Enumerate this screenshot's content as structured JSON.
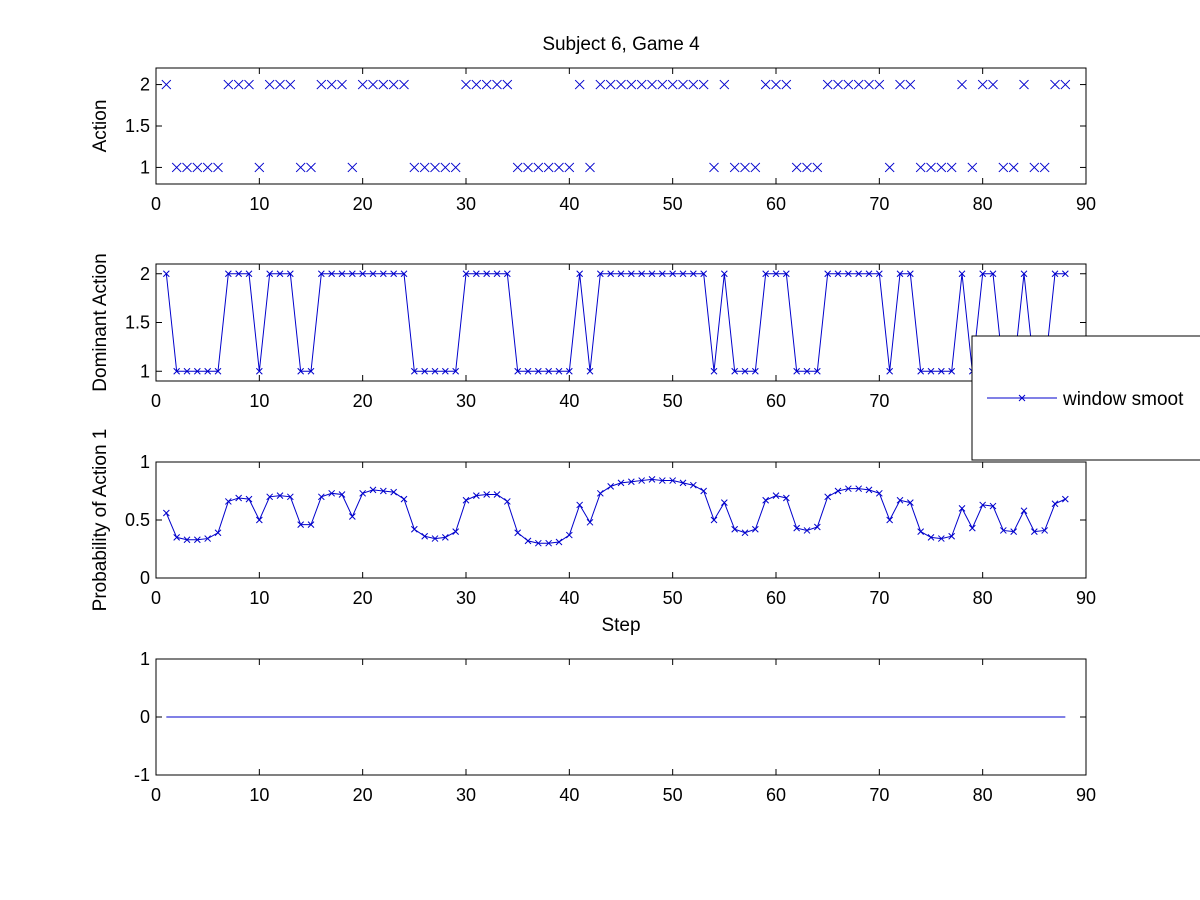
{
  "figure": {
    "title": "Subject 6, Game 4",
    "legend_label": "window smoot",
    "line_color": "#0000cc"
  },
  "chart_data": [
    {
      "type": "scatter",
      "title": "Subject 6, Game 4",
      "xlabel": "",
      "ylabel": "Action",
      "xlim": [
        0,
        90
      ],
      "ylim": [
        0.8,
        2.2
      ],
      "xticks": [
        "0",
        "10",
        "20",
        "30",
        "40",
        "50",
        "60",
        "70",
        "80",
        "90"
      ],
      "yticks": [
        "1",
        "1.5",
        "2"
      ],
      "marker": "x",
      "color": "#0000cc",
      "x": [
        1,
        2,
        3,
        4,
        5,
        6,
        7,
        8,
        9,
        10,
        11,
        12,
        13,
        14,
        15,
        16,
        17,
        18,
        19,
        20,
        21,
        22,
        23,
        24,
        25,
        26,
        27,
        28,
        29,
        30,
        31,
        32,
        33,
        34,
        35,
        36,
        37,
        38,
        39,
        40,
        41,
        42,
        43,
        44,
        45,
        46,
        47,
        48,
        49,
        50,
        51,
        52,
        53,
        54,
        55,
        56,
        57,
        58,
        59,
        60,
        61,
        62,
        63,
        64,
        65,
        66,
        67,
        68,
        69,
        70,
        71,
        72,
        73,
        74,
        75,
        76,
        77,
        78,
        79,
        80,
        81,
        82,
        83,
        84,
        85,
        86,
        87,
        88
      ],
      "y": [
        2,
        1,
        1,
        1,
        1,
        1,
        2,
        2,
        2,
        1,
        2,
        2,
        2,
        1,
        1,
        2,
        2,
        2,
        1,
        2,
        2,
        2,
        2,
        2,
        1,
        1,
        1,
        1,
        1,
        2,
        2,
        2,
        2,
        2,
        1,
        1,
        1,
        1,
        1,
        1,
        2,
        1,
        2,
        2,
        2,
        2,
        2,
        2,
        2,
        2,
        2,
        2,
        2,
        1,
        2,
        1,
        1,
        1,
        2,
        2,
        2,
        1,
        1,
        1,
        2,
        2,
        2,
        2,
        2,
        2,
        1,
        2,
        2,
        1,
        1,
        1,
        1,
        2,
        1,
        2,
        2,
        1,
        1,
        2,
        1,
        1,
        2,
        2
      ]
    },
    {
      "type": "line",
      "xlabel": "",
      "ylabel": "Dominant Action",
      "xlim": [
        0,
        90
      ],
      "ylim": [
        0.9,
        2.1
      ],
      "xticks": [
        "0",
        "10",
        "20",
        "30",
        "40",
        "50",
        "60",
        "70",
        "80",
        "90"
      ],
      "yticks": [
        "1",
        "1.5",
        "2"
      ],
      "marker": "x",
      "color": "#0000cc",
      "series": [
        {
          "name": "window smoot",
          "x": [
            1,
            2,
            3,
            4,
            5,
            6,
            7,
            8,
            9,
            10,
            11,
            12,
            13,
            14,
            15,
            16,
            17,
            18,
            19,
            20,
            21,
            22,
            23,
            24,
            25,
            26,
            27,
            28,
            29,
            30,
            31,
            32,
            33,
            34,
            35,
            36,
            37,
            38,
            39,
            40,
            41,
            42,
            43,
            44,
            45,
            46,
            47,
            48,
            49,
            50,
            51,
            52,
            53,
            54,
            55,
            56,
            57,
            58,
            59,
            60,
            61,
            62,
            63,
            64,
            65,
            66,
            67,
            68,
            69,
            70,
            71,
            72,
            73,
            74,
            75,
            76,
            77,
            78,
            79,
            80,
            81,
            82,
            83,
            84,
            85,
            86,
            87,
            88
          ],
          "values": [
            2,
            1,
            1,
            1,
            1,
            1,
            2,
            2,
            2,
            1,
            2,
            2,
            2,
            1,
            1,
            2,
            2,
            2,
            2,
            2,
            2,
            2,
            2,
            2,
            1,
            1,
            1,
            1,
            1,
            2,
            2,
            2,
            2,
            2,
            1,
            1,
            1,
            1,
            1,
            1,
            2,
            1,
            2,
            2,
            2,
            2,
            2,
            2,
            2,
            2,
            2,
            2,
            2,
            1,
            2,
            1,
            1,
            1,
            2,
            2,
            2,
            1,
            1,
            1,
            2,
            2,
            2,
            2,
            2,
            2,
            1,
            2,
            2,
            1,
            1,
            1,
            1,
            2,
            1,
            2,
            2,
            1,
            1,
            2,
            1,
            1,
            2,
            2
          ]
        }
      ],
      "legend": "right",
      "legend_entries": [
        "window smoot"
      ]
    },
    {
      "type": "line",
      "xlabel": "Step",
      "ylabel": "Probability of Action 1",
      "xlim": [
        0,
        90
      ],
      "ylim": [
        0,
        1
      ],
      "xticks": [
        "0",
        "10",
        "20",
        "30",
        "40",
        "50",
        "60",
        "70",
        "80",
        "90"
      ],
      "yticks": [
        "0",
        "0.5",
        "1"
      ],
      "marker": "x",
      "color": "#0000cc",
      "x": [
        1,
        2,
        3,
        4,
        5,
        6,
        7,
        8,
        9,
        10,
        11,
        12,
        13,
        14,
        15,
        16,
        17,
        18,
        19,
        20,
        21,
        22,
        23,
        24,
        25,
        26,
        27,
        28,
        29,
        30,
        31,
        32,
        33,
        34,
        35,
        36,
        37,
        38,
        39,
        40,
        41,
        42,
        43,
        44,
        45,
        46,
        47,
        48,
        49,
        50,
        51,
        52,
        53,
        54,
        55,
        56,
        57,
        58,
        59,
        60,
        61,
        62,
        63,
        64,
        65,
        66,
        67,
        68,
        69,
        70,
        71,
        72,
        73,
        74,
        75,
        76,
        77,
        78,
        79,
        80,
        81,
        82,
        83,
        84,
        85,
        86,
        87,
        88
      ],
      "values": [
        0.56,
        0.35,
        0.33,
        0.33,
        0.34,
        0.39,
        0.66,
        0.69,
        0.68,
        0.5,
        0.7,
        0.71,
        0.7,
        0.46,
        0.46,
        0.7,
        0.73,
        0.72,
        0.53,
        0.73,
        0.76,
        0.75,
        0.74,
        0.68,
        0.42,
        0.36,
        0.34,
        0.35,
        0.4,
        0.67,
        0.71,
        0.72,
        0.72,
        0.66,
        0.39,
        0.32,
        0.3,
        0.3,
        0.31,
        0.37,
        0.63,
        0.48,
        0.73,
        0.79,
        0.82,
        0.83,
        0.84,
        0.85,
        0.84,
        0.84,
        0.82,
        0.8,
        0.75,
        0.5,
        0.65,
        0.42,
        0.39,
        0.42,
        0.67,
        0.71,
        0.69,
        0.43,
        0.41,
        0.44,
        0.7,
        0.75,
        0.77,
        0.77,
        0.76,
        0.73,
        0.5,
        0.67,
        0.65,
        0.4,
        0.35,
        0.34,
        0.36,
        0.6,
        0.43,
        0.63,
        0.62,
        0.41,
        0.4,
        0.58,
        0.4,
        0.41,
        0.64,
        0.68
      ]
    },
    {
      "type": "line",
      "xlabel": "",
      "ylabel": "",
      "xlim": [
        0,
        90
      ],
      "ylim": [
        -1,
        1
      ],
      "xticks": [
        "0",
        "10",
        "20",
        "30",
        "40",
        "50",
        "60",
        "70",
        "80",
        "90"
      ],
      "yticks": [
        "-1",
        "0",
        "1"
      ],
      "color": "#0000cc",
      "x": [
        1,
        88
      ],
      "values": [
        0,
        0
      ]
    }
  ]
}
